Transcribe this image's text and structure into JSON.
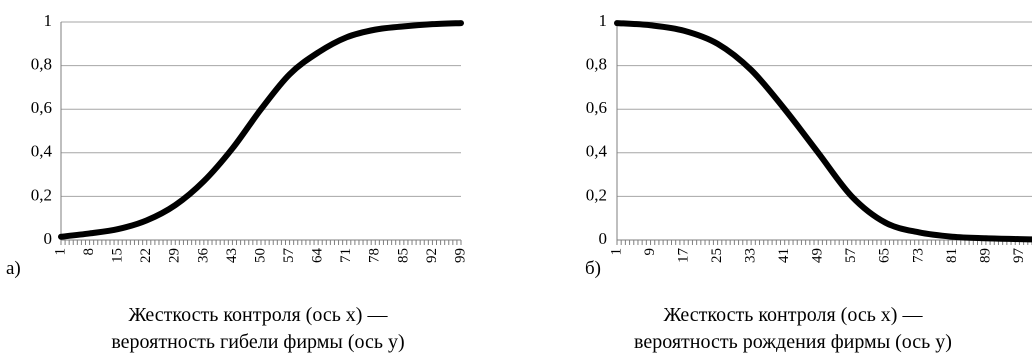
{
  "chart_data": [
    {
      "type": "line",
      "panel_label": "а)",
      "caption_line1": "Жесткость контроля (ось х) —",
      "caption_line2": "вероятность гибели фирмы (ось у)",
      "ylim": [
        0,
        1
      ],
      "y_ticks": [
        "0",
        "0,2",
        "0,4",
        "0,6",
        "0,8",
        "1"
      ],
      "x_range": [
        1,
        99
      ],
      "x_tick_labels": [
        "1",
        "8",
        "15",
        "22",
        "29",
        "36",
        "43",
        "50",
        "57",
        "64",
        "71",
        "78",
        "85",
        "92",
        "99"
      ],
      "grid": true,
      "series": [
        {
          "x": [
            1,
            8,
            15,
            22,
            29,
            36,
            43,
            50,
            57,
            64,
            71,
            78,
            85,
            92,
            99
          ],
          "y": [
            0.015,
            0.03,
            0.05,
            0.09,
            0.16,
            0.27,
            0.42,
            0.6,
            0.76,
            0.86,
            0.93,
            0.965,
            0.98,
            0.99,
            0.995
          ],
          "color": "#000000"
        }
      ]
    },
    {
      "type": "line",
      "panel_label": "б)",
      "caption_line1": "Жесткость контроля (ось х) —",
      "caption_line2": "вероятность рождения фирмы (ось у)",
      "ylim": [
        0,
        1
      ],
      "y_ticks": [
        "0",
        "0,2",
        "0,4",
        "0,6",
        "0,8",
        "1"
      ],
      "x_range": [
        1,
        100
      ],
      "x_tick_labels": [
        "1",
        "9",
        "17",
        "25",
        "33",
        "41",
        "49",
        "57",
        "65",
        "73",
        "81",
        "89",
        "97"
      ],
      "grid": true,
      "series": [
        {
          "x": [
            1,
            9,
            17,
            25,
            33,
            41,
            49,
            57,
            65,
            73,
            81,
            89,
            97,
            100
          ],
          "y": [
            0.995,
            0.985,
            0.96,
            0.9,
            0.78,
            0.6,
            0.4,
            0.2,
            0.08,
            0.035,
            0.015,
            0.008,
            0.004,
            0.003
          ],
          "color": "#000000"
        }
      ]
    }
  ]
}
